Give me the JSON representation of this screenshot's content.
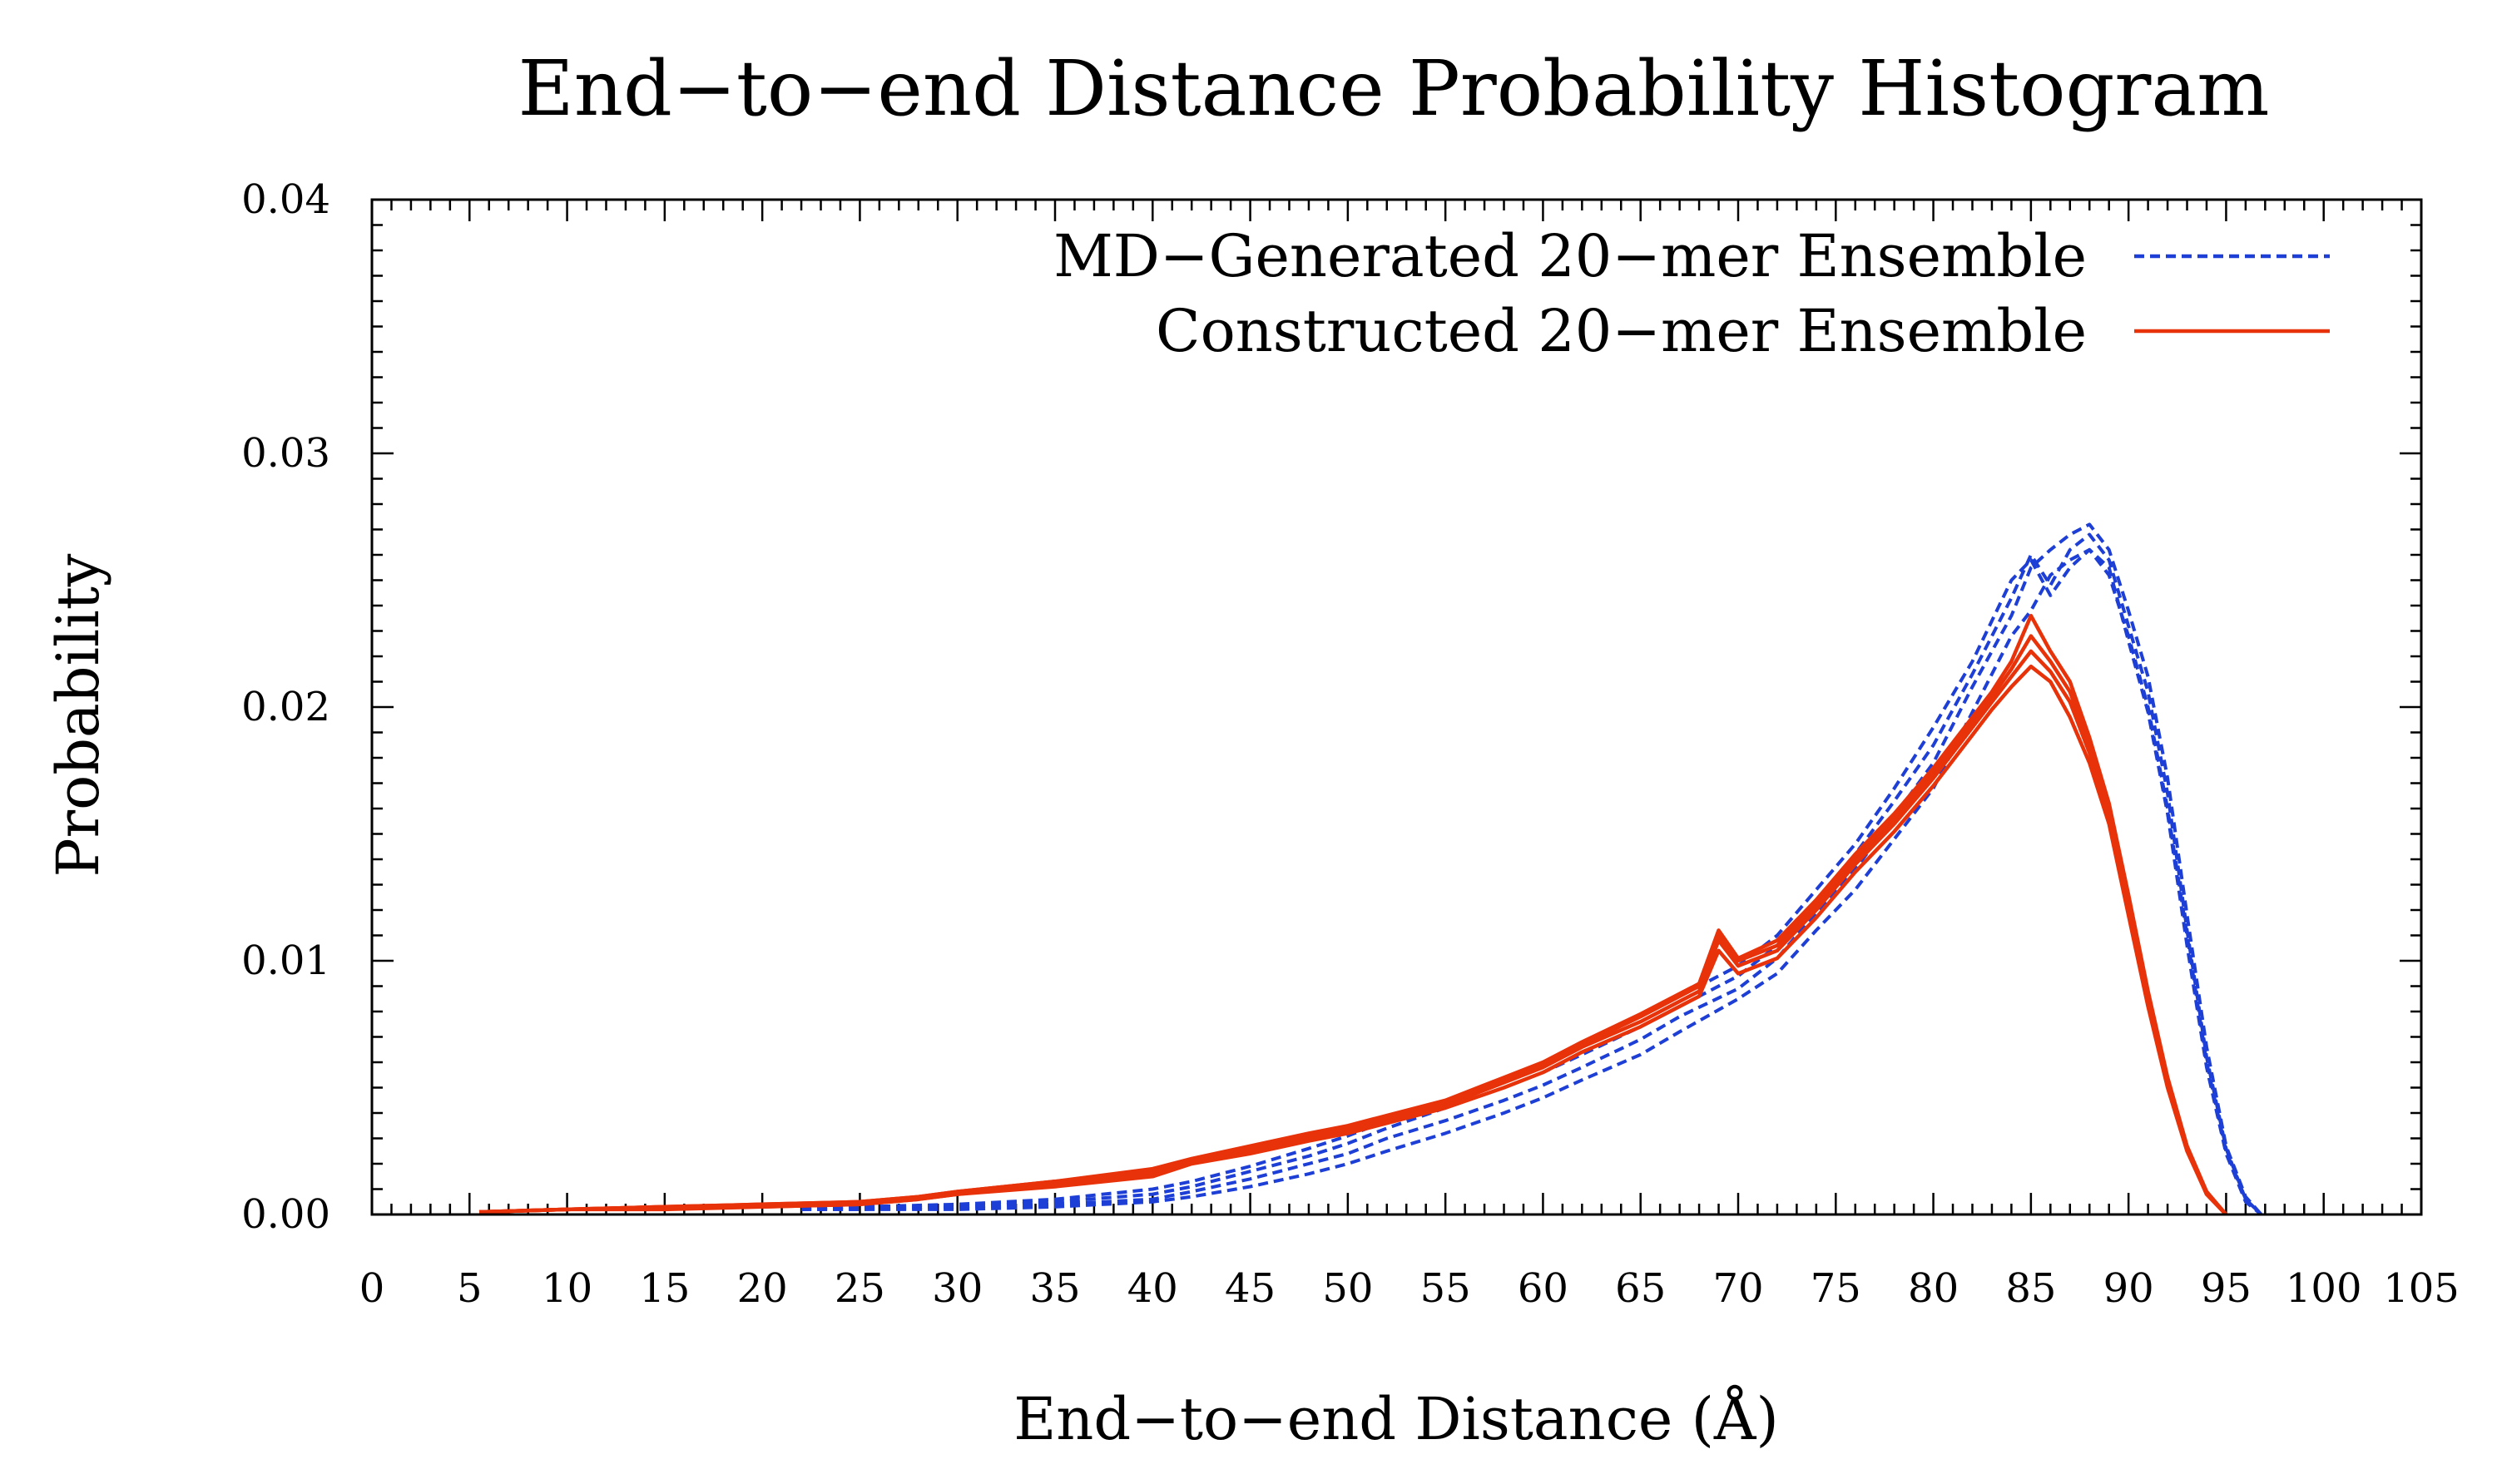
{
  "colors": {
    "md_series": "#1d3fd6",
    "constructed_series": "#e8320a",
    "axis": "#000000",
    "background": "#ffffff"
  },
  "chart_data": {
    "type": "line",
    "title": "End−to−end Distance Probability Histogram",
    "xlabel": "End−to−end Distance (Å)",
    "ylabel": "Probability",
    "xlim": [
      0,
      105
    ],
    "ylim": [
      0,
      0.04
    ],
    "x_ticks": [
      0,
      5,
      10,
      15,
      20,
      25,
      30,
      35,
      40,
      45,
      50,
      55,
      60,
      65,
      70,
      75,
      80,
      85,
      90,
      95,
      100,
      105
    ],
    "x_tick_labels": [
      "0",
      "5",
      "10",
      "15",
      "20",
      "25",
      "30",
      "35",
      "40",
      "45",
      "50",
      "55",
      "60",
      "65",
      "70",
      "75",
      "80",
      "85",
      "90",
      "95",
      "100",
      "105"
    ],
    "y_ticks": [
      0,
      0.01,
      0.02,
      0.03,
      0.04
    ],
    "y_tick_labels": [
      "0.00",
      "0.01",
      "0.02",
      "0.03",
      "0.04"
    ],
    "grid": false,
    "legend_position": "top-right",
    "legend": [
      {
        "label": "MD−Generated 20−mer Ensemble",
        "series": "md",
        "style": "dashed"
      },
      {
        "label": "Constructed 20−mer Ensemble",
        "series": "constructed",
        "style": "solid"
      }
    ],
    "series": [
      {
        "name": "MD−Generated 20−mer Ensemble",
        "group": "md",
        "style": "dashed",
        "x": [
          22,
          25,
          30,
          35,
          40,
          42,
          45,
          48,
          50,
          52,
          55,
          58,
          60,
          62,
          65,
          67,
          70,
          72,
          74,
          76,
          78,
          80,
          82,
          84,
          85,
          86,
          87,
          88,
          89,
          90,
          91,
          92,
          93,
          94,
          95,
          96,
          96.8
        ],
        "y": [
          0.0002,
          0.0002,
          0.0002,
          0.0003,
          0.0005,
          0.0007,
          0.0011,
          0.0016,
          0.002,
          0.0025,
          0.0032,
          0.004,
          0.0046,
          0.0053,
          0.0063,
          0.0072,
          0.0085,
          0.0095,
          0.0112,
          0.0128,
          0.0148,
          0.0168,
          0.0198,
          0.0228,
          0.0238,
          0.0252,
          0.0258,
          0.0262,
          0.0252,
          0.0228,
          0.02,
          0.016,
          0.011,
          0.006,
          0.0025,
          0.0006,
          0.0
        ]
      },
      {
        "name": "MD−Generated 20−mer Ensemble",
        "group": "md",
        "style": "dashed",
        "x": [
          22,
          25,
          30,
          35,
          40,
          42,
          45,
          48,
          50,
          52,
          55,
          58,
          60,
          62,
          65,
          67,
          70,
          72,
          74,
          76,
          78,
          80,
          82,
          84,
          85,
          86,
          87,
          88,
          89,
          90,
          91,
          92,
          93,
          94,
          95,
          96,
          96.8
        ],
        "y": [
          0.0002,
          0.0002,
          0.0003,
          0.0004,
          0.0006,
          0.0009,
          0.0014,
          0.002,
          0.0024,
          0.003,
          0.0037,
          0.0045,
          0.0051,
          0.0058,
          0.0069,
          0.0078,
          0.0089,
          0.0101,
          0.0119,
          0.0136,
          0.0157,
          0.0178,
          0.0208,
          0.0236,
          0.0255,
          0.0262,
          0.0268,
          0.0272,
          0.0262,
          0.0238,
          0.0212,
          0.0172,
          0.0118,
          0.0066,
          0.0027,
          0.0007,
          0.0
        ]
      },
      {
        "name": "MD−Generated 20−mer Ensemble",
        "group": "md",
        "style": "dashed",
        "x": [
          22,
          25,
          30,
          35,
          40,
          42,
          45,
          48,
          50,
          52,
          55,
          58,
          60,
          62,
          65,
          67,
          70,
          72,
          74,
          76,
          78,
          80,
          82,
          84,
          85,
          86,
          87,
          88,
          89,
          90,
          91,
          92,
          93,
          94,
          95,
          96,
          96.8
        ],
        "y": [
          0.0002,
          0.0003,
          0.0003,
          0.0005,
          0.0008,
          0.0011,
          0.0017,
          0.0023,
          0.0028,
          0.0034,
          0.0042,
          0.005,
          0.0056,
          0.0063,
          0.0074,
          0.0082,
          0.0094,
          0.0106,
          0.0124,
          0.0142,
          0.0163,
          0.0185,
          0.0213,
          0.0243,
          0.026,
          0.0248,
          0.0262,
          0.0268,
          0.0258,
          0.0232,
          0.0206,
          0.0166,
          0.0112,
          0.0062,
          0.0026,
          0.0006,
          0.0
        ]
      },
      {
        "name": "MD−Generated 20−mer Ensemble",
        "group": "md",
        "style": "dashed",
        "x": [
          22,
          25,
          30,
          35,
          40,
          42,
          45,
          48,
          50,
          52,
          55,
          58,
          60,
          62,
          65,
          67,
          70,
          72,
          74,
          76,
          78,
          80,
          82,
          84,
          85,
          86,
          87,
          88,
          89,
          90,
          91,
          92,
          93,
          94,
          95,
          96,
          96.8
        ],
        "y": [
          0.0003,
          0.0003,
          0.0004,
          0.0006,
          0.001,
          0.0013,
          0.0019,
          0.0026,
          0.0031,
          0.0037,
          0.0045,
          0.0053,
          0.006,
          0.0067,
          0.0078,
          0.0086,
          0.0098,
          0.011,
          0.0128,
          0.0146,
          0.0168,
          0.0192,
          0.0218,
          0.025,
          0.0258,
          0.0244,
          0.0255,
          0.0262,
          0.0255,
          0.0226,
          0.0198,
          0.0158,
          0.0106,
          0.0058,
          0.0024,
          0.0005,
          0.0
        ]
      },
      {
        "name": "Constructed 20−mer Ensemble",
        "group": "constructed",
        "style": "solid",
        "x": [
          5.5,
          10,
          15,
          20,
          25,
          28,
          30,
          35,
          40,
          42,
          45,
          48,
          50,
          52,
          55,
          58,
          60,
          62,
          65,
          68,
          69,
          70,
          72,
          74,
          76,
          78,
          80,
          82,
          83,
          84,
          85,
          86,
          87,
          88,
          89,
          90,
          91,
          92,
          93,
          94,
          95
        ],
        "y": [
          0.0001,
          0.0002,
          0.0003,
          0.0003,
          0.0004,
          0.0006,
          0.0008,
          0.0012,
          0.0016,
          0.0021,
          0.0025,
          0.003,
          0.0033,
          0.0037,
          0.0043,
          0.0052,
          0.0058,
          0.0066,
          0.0076,
          0.0088,
          0.0108,
          0.0098,
          0.0104,
          0.012,
          0.0138,
          0.0154,
          0.0172,
          0.0192,
          0.0202,
          0.0212,
          0.0222,
          0.0214,
          0.0202,
          0.0182,
          0.0158,
          0.0122,
          0.0085,
          0.0052,
          0.0026,
          0.0008,
          0.0
        ]
      },
      {
        "name": "Constructed 20−mer Ensemble",
        "group": "constructed",
        "style": "solid",
        "x": [
          5.5,
          10,
          15,
          20,
          25,
          28,
          30,
          35,
          40,
          42,
          45,
          48,
          50,
          52,
          55,
          58,
          60,
          62,
          65,
          68,
          69,
          70,
          72,
          74,
          76,
          78,
          80,
          82,
          83,
          84,
          85,
          86,
          87,
          88,
          89,
          90,
          91,
          92,
          93,
          94,
          95
        ],
        "y": [
          0.0001,
          0.0002,
          0.0003,
          0.0004,
          0.0005,
          0.0007,
          0.0009,
          0.0013,
          0.0018,
          0.0022,
          0.0027,
          0.0032,
          0.0035,
          0.0039,
          0.0045,
          0.0054,
          0.006,
          0.0068,
          0.0079,
          0.0091,
          0.0112,
          0.0101,
          0.0108,
          0.0124,
          0.0142,
          0.0158,
          0.0176,
          0.0196,
          0.0206,
          0.0218,
          0.0236,
          0.0222,
          0.021,
          0.0188,
          0.0162,
          0.0126,
          0.0088,
          0.0054,
          0.0027,
          0.0009,
          0.0
        ]
      },
      {
        "name": "Constructed 20−mer Ensemble",
        "group": "constructed",
        "style": "solid",
        "x": [
          5.5,
          10,
          15,
          20,
          25,
          28,
          30,
          35,
          40,
          42,
          45,
          48,
          50,
          52,
          55,
          58,
          60,
          62,
          65,
          68,
          69,
          70,
          72,
          74,
          76,
          78,
          80,
          82,
          83,
          84,
          85,
          86,
          87,
          88,
          89,
          90,
          91,
          92,
          93,
          94,
          95
        ],
        "y": [
          0.0001,
          0.0002,
          0.0002,
          0.0003,
          0.0004,
          0.0006,
          0.0008,
          0.0011,
          0.0015,
          0.002,
          0.0024,
          0.0029,
          0.0032,
          0.0036,
          0.0042,
          0.005,
          0.0056,
          0.0064,
          0.0074,
          0.0086,
          0.0104,
          0.0095,
          0.0101,
          0.0117,
          0.0135,
          0.0151,
          0.0169,
          0.0189,
          0.0199,
          0.0208,
          0.0216,
          0.021,
          0.0196,
          0.0178,
          0.0154,
          0.0118,
          0.0082,
          0.005,
          0.0025,
          0.0008,
          0.0
        ]
      },
      {
        "name": "Constructed 20−mer Ensemble",
        "group": "constructed",
        "style": "solid",
        "x": [
          5.5,
          10,
          15,
          20,
          25,
          28,
          30,
          35,
          40,
          42,
          45,
          48,
          50,
          52,
          55,
          58,
          60,
          62,
          65,
          68,
          69,
          70,
          72,
          74,
          76,
          78,
          80,
          82,
          83,
          84,
          85,
          86,
          87,
          88,
          89,
          90,
          91,
          92,
          93,
          94,
          95
        ],
        "y": [
          0.0001,
          0.0002,
          0.0003,
          0.0004,
          0.0005,
          0.0007,
          0.0009,
          0.0013,
          0.0017,
          0.0021,
          0.0026,
          0.0031,
          0.0034,
          0.0038,
          0.0044,
          0.0053,
          0.0059,
          0.0067,
          0.0078,
          0.009,
          0.011,
          0.01,
          0.0106,
          0.0122,
          0.014,
          0.0156,
          0.0174,
          0.0194,
          0.0204,
          0.0215,
          0.0228,
          0.0218,
          0.0206,
          0.0185,
          0.016,
          0.0124,
          0.0086,
          0.0053,
          0.0026,
          0.0008,
          0.0
        ]
      }
    ]
  }
}
